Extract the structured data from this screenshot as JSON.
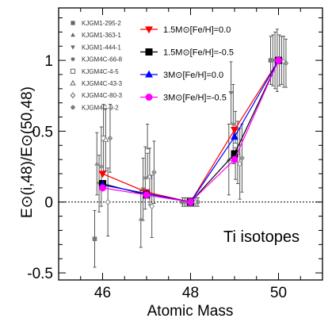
{
  "chart_data": {
    "type": "scatter",
    "annotation": "Ti isotopes",
    "xlabel": "Atomic Mass",
    "ylabel": "E⊙(i,48)/E⊙(50,48)",
    "xlim": [
      45,
      51
    ],
    "ylim": [
      -0.55,
      1.37
    ],
    "xticks": [
      "46",
      "48",
      "50"
    ],
    "yticks": [
      "-0.5",
      "0",
      "0.5",
      "1"
    ],
    "zero_line": "dotted",
    "grains": [
      {
        "name": "KJGM1-295-2",
        "marker": "square",
        "points": [
          [
            45.82,
            -0.26,
            0.2
          ],
          [
            47.82,
            0.0,
            0.03
          ],
          [
            49.82,
            1.0,
            0.17
          ]
        ]
      },
      {
        "name": "KJGM1-363-1",
        "marker": "triangle",
        "points": [
          [
            45.87,
            0.27,
            0.22
          ],
          [
            46.87,
            -0.12,
            0.2
          ],
          [
            47.87,
            0.0,
            0.03
          ],
          [
            48.87,
            0.3,
            0.25
          ],
          [
            49.87,
            1.0,
            0.18
          ]
        ]
      },
      {
        "name": "KJGM1-444-1",
        "marker": "triangle-down",
        "points": [
          [
            45.92,
            0.13,
            0.2
          ],
          [
            46.92,
            0.09,
            0.22
          ],
          [
            47.92,
            0.0,
            0.03
          ],
          [
            48.92,
            0.77,
            0.22
          ],
          [
            49.92,
            1.0,
            0.2
          ]
        ]
      },
      {
        "name": "KJGM4C-66-8",
        "marker": "star",
        "points": [
          [
            45.97,
            0.25,
            0.28
          ],
          [
            46.97,
            0.17,
            0.22
          ],
          [
            47.97,
            0.0,
            0.03
          ],
          [
            48.97,
            0.55,
            0.28
          ],
          [
            49.97,
            1.0,
            0.22
          ]
        ]
      },
      {
        "name": "KJGM4C-4-5",
        "marker": "open-square",
        "points": [
          [
            46.02,
            0.45,
            0.24
          ],
          [
            47.02,
            0.36,
            0.19
          ],
          [
            48.02,
            0.0,
            0.03
          ],
          [
            49.02,
            0.4,
            0.24
          ],
          [
            50.02,
            1.0,
            0.18
          ]
        ]
      },
      {
        "name": "KJGM4C-43-3",
        "marker": "open-triangle",
        "points": [
          [
            46.07,
            0.44,
            0.22
          ],
          [
            47.07,
            0.18,
            0.2
          ],
          [
            48.07,
            0.0,
            0.03
          ],
          [
            49.07,
            0.35,
            0.22
          ],
          [
            50.07,
            1.0,
            0.17
          ]
        ]
      },
      {
        "name": "KJGM4C-80-3",
        "marker": "open-diamond",
        "points": [
          [
            46.12,
            0.0,
            0.24
          ],
          [
            47.12,
            -0.03,
            0.22
          ],
          [
            48.12,
            0.0,
            0.03
          ],
          [
            49.12,
            0.27,
            0.25
          ],
          [
            50.12,
            0.99,
            0.18
          ]
        ]
      },
      {
        "name": "KJGM4C-9-2",
        "marker": "open-cross",
        "points": [
          [
            46.17,
            0.45,
            0.24
          ],
          [
            47.17,
            0.21,
            0.22
          ],
          [
            48.17,
            0.0,
            0.03
          ],
          [
            49.17,
            0.31,
            0.24
          ],
          [
            50.17,
            0.98,
            0.17
          ]
        ]
      }
    ],
    "models": [
      {
        "name": "1.5M⊙[Fe/H]=0.0",
        "color": "#ff0000",
        "marker": "triangle-down",
        "x": [
          46,
          47,
          48,
          49,
          50
        ],
        "y": [
          0.2,
          0.07,
          0.0,
          0.51,
          1.0
        ]
      },
      {
        "name": "1.5M⊙[Fe/H]=-0.5",
        "color": "#000000",
        "marker": "square",
        "x": [
          46,
          47,
          48,
          49,
          50
        ],
        "y": [
          0.13,
          0.05,
          0.0,
          0.34,
          1.0
        ]
      },
      {
        "name": "3M⊙[Fe/H]=0.0",
        "color": "#0000ff",
        "marker": "triangle",
        "x": [
          46,
          47,
          48,
          49,
          50
        ],
        "y": [
          0.12,
          0.06,
          0.0,
          0.46,
          1.0
        ]
      },
      {
        "name": "3M⊙[Fe/H]=-0.5",
        "color": "#ff00ff",
        "marker": "circle",
        "x": [
          46,
          47,
          48,
          49,
          50
        ],
        "y": [
          0.1,
          0.05,
          0.0,
          0.3,
          1.0
        ]
      }
    ]
  }
}
